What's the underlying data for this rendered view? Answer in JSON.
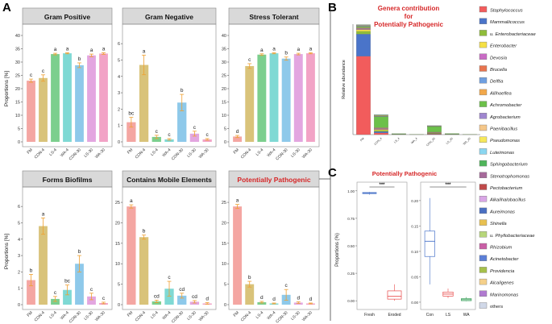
{
  "panel_letters": {
    "a": "A",
    "b": "B",
    "c": "C"
  },
  "colors": {
    "bars": [
      "#f4a6a2",
      "#d9c37a",
      "#7ccf8e",
      "#7fd9d4",
      "#8ec9ea",
      "#e3a6e0",
      "#f2a3c6"
    ],
    "errorbar": "#f0a030",
    "strip": "#d9d9d9",
    "title_red": "#d62728",
    "stack": [
      "#f25c5c",
      "#4a74c9",
      "#8fbc3a",
      "#f5e044",
      "#c86bc4",
      "#e8744f",
      "#6f9fe0",
      "#f2a84a",
      "#6cc04a",
      "#9f86cf",
      "#f5c78a",
      "#f6e85a",
      "#8ad6f0",
      "#4fb55a",
      "#a66a9a",
      "#c04a4a",
      "#d9a6e6",
      "#4a6fc2",
      "#e8c050",
      "#b7d67a",
      "#c95fa6",
      "#5c7fd6",
      "#a5c04a",
      "#f5d08a",
      "#b07ad0",
      "#d0d8e8"
    ],
    "box_fresh": "#4a74c9",
    "box_eroded": "#e84a4a",
    "box_con": "#4a74c9",
    "box_ls": "#e84a4a",
    "box_wa": "#3aa05a"
  },
  "chart_data": [
    {
      "type": "bar",
      "title": "Gram Positive",
      "categories": [
        "FM",
        "CON-4",
        "LS-4",
        "WA-4",
        "CON-30",
        "LS-30",
        "WA-30"
      ],
      "values": [
        23,
        24,
        33,
        33.3,
        28.8,
        32.5,
        33.2
      ],
      "errors": [
        0.6,
        1.2,
        0.3,
        0.2,
        0.9,
        0.5,
        0.3
      ],
      "letters": [
        "c",
        "c",
        "a",
        "a",
        "b",
        "a",
        "a"
      ],
      "ylim": [
        0,
        40
      ],
      "yticks": [
        "0",
        "5",
        "10",
        "15",
        "20",
        "25",
        "30",
        "35",
        "40"
      ],
      "ylabel": "Proportions [%]"
    },
    {
      "type": "bar",
      "title": "Gram Negative",
      "categories": [
        "FM",
        "CON-4",
        "LS-4",
        "WA-4",
        "CON-30",
        "LS-30",
        "WA-30"
      ],
      "values": [
        1.2,
        4.7,
        0.3,
        0.15,
        2.4,
        0.5,
        0.15
      ],
      "errors": [
        0.3,
        0.6,
        0.1,
        0.05,
        0.5,
        0.15,
        0.05
      ],
      "letters": [
        "bc",
        "a",
        "c",
        "c",
        "b",
        "c",
        "c"
      ],
      "ylim": [
        0,
        6.5
      ],
      "yticks": [
        "0",
        "1",
        "2",
        "3",
        "4",
        "5",
        "6"
      ],
      "ylabel": ""
    },
    {
      "type": "bar",
      "title": "Stress Tolerant",
      "categories": [
        "FM",
        "CON-4",
        "LS-4",
        "WA-4",
        "CON-30",
        "LS-30",
        "WA-30"
      ],
      "values": [
        2,
        28.5,
        32.8,
        33.3,
        31.3,
        33,
        33.3
      ],
      "errors": [
        0.4,
        0.9,
        0.3,
        0.2,
        0.6,
        0.3,
        0.2
      ],
      "letters": [
        "d",
        "c",
        "a",
        "a",
        "b",
        "a",
        "a"
      ],
      "ylim": [
        0,
        40
      ],
      "yticks": [
        "0",
        "5",
        "10",
        "15",
        "20",
        "25",
        "30",
        "35",
        "40"
      ],
      "ylabel": ""
    },
    {
      "type": "bar",
      "title": "Forms Biofilms",
      "categories": [
        "FM",
        "CON-4",
        "LS-4",
        "WA-4",
        "CON-30",
        "LS-30",
        "WA-30"
      ],
      "values": [
        1.5,
        4.8,
        0.35,
        0.9,
        2.5,
        0.5,
        0.1
      ],
      "errors": [
        0.35,
        0.5,
        0.15,
        0.3,
        0.5,
        0.2,
        0.05
      ],
      "letters": [
        "b",
        "a",
        "c",
        "bc",
        "b",
        "c",
        "c"
      ],
      "ylim": [
        0,
        6.5
      ],
      "yticks": [
        "0",
        "1",
        "2",
        "3",
        "4",
        "5",
        "6"
      ],
      "ylabel": "Proportions [%]"
    },
    {
      "type": "bar",
      "title": "Contains Mobile Elements",
      "categories": [
        "FM",
        "CON-4",
        "LS-4",
        "WA-4",
        "CON-30",
        "LS-30",
        "WA-30"
      ],
      "values": [
        24,
        16.5,
        0.8,
        3.9,
        2.2,
        0.7,
        0.3
      ],
      "errors": [
        0.4,
        0.5,
        0.3,
        1.8,
        0.6,
        0.3,
        0.2
      ],
      "letters": [
        "a",
        "b",
        "cd",
        "c",
        "cd",
        "cd",
        "d"
      ],
      "ylim": [
        0,
        26
      ],
      "yticks": [
        "0",
        "5",
        "10",
        "15",
        "20",
        "25"
      ],
      "ylabel": ""
    },
    {
      "type": "bar",
      "title": "Potentially Pathogenic",
      "categories": [
        "FM",
        "CON-4",
        "LS-4",
        "WA-4",
        "CON-30",
        "LS-30",
        "WA-30"
      ],
      "values": [
        24,
        5,
        0.6,
        0.3,
        2.4,
        0.5,
        0.3
      ],
      "errors": [
        0.5,
        0.7,
        0.2,
        0.1,
        1.3,
        0.2,
        0.1
      ],
      "letters": [
        "a",
        "b",
        "d",
        "d",
        "c",
        "d",
        "d"
      ],
      "ylim": [
        0,
        26
      ],
      "yticks": [
        "0",
        "5",
        "10",
        "15",
        "20",
        "25"
      ],
      "ylabel": ""
    },
    {
      "type": "bar",
      "stacked": true,
      "title": "Genera contribution for Potentially Pathogenic",
      "title_lines": [
        "Genera contribution",
        "for",
        "Potentially Pathogenic"
      ],
      "ylabel": "Relative abundance",
      "categories": [
        "FM",
        "CON_4",
        "LS_4",
        "WA_4",
        "CON_30",
        "LS_30",
        "WA_30"
      ],
      "ylim": [
        0,
        1
      ],
      "series": [
        {
          "name": "Staphylococcus",
          "values": [
            0.71,
            0.015,
            0.002,
            0.001,
            0.004,
            0.002,
            0.001
          ]
        },
        {
          "name": "Mammaliicoccus",
          "values": [
            0.2,
            0.012,
            0.001,
            0.0,
            0.003,
            0.001,
            0.0
          ]
        },
        {
          "name": "u. Enterobacteriaceae",
          "values": [
            0.025,
            0.01,
            0.001,
            0.0,
            0.004,
            0.001,
            0.0
          ]
        },
        {
          "name": "Enterobacter",
          "values": [
            0.015,
            0.008,
            0.0,
            0.0,
            0.003,
            0.0,
            0.0
          ]
        },
        {
          "name": "Devosia",
          "values": [
            0.005,
            0.004,
            0.0,
            0.0,
            0.002,
            0.0,
            0.0
          ]
        },
        {
          "name": "Brucella",
          "values": [
            0.005,
            0.006,
            0.0,
            0.0,
            0.003,
            0.0,
            0.0
          ]
        },
        {
          "name": "Delftia",
          "values": [
            0.005,
            0.005,
            0.0,
            0.0,
            0.002,
            0.0,
            0.0
          ]
        },
        {
          "name": "Allihoeflea",
          "values": [
            0.005,
            0.004,
            0.0,
            0.0,
            0.002,
            0.0,
            0.0
          ]
        },
        {
          "name": "Achromobacter",
          "values": [
            0.01,
            0.1,
            0.005,
            0.002,
            0.05,
            0.006,
            0.002
          ]
        },
        {
          "name": "Agrobacterium",
          "values": [
            0.005,
            0.004,
            0.0,
            0.0,
            0.002,
            0.0,
            0.0
          ]
        },
        {
          "name": "Paenibacillus",
          "values": [
            0.003,
            0.003,
            0.0,
            0.0,
            0.002,
            0.0,
            0.0
          ]
        },
        {
          "name": "Pseudomonas",
          "values": [
            0.003,
            0.004,
            0.0,
            0.0,
            0.002,
            0.0,
            0.0
          ]
        },
        {
          "name": "Luteimonas",
          "values": [
            0.002,
            0.003,
            0.0,
            0.0,
            0.001,
            0.0,
            0.0
          ]
        },
        {
          "name": "Sphingobacterium",
          "values": [
            0.002,
            0.002,
            0.0,
            0.0,
            0.001,
            0.0,
            0.0
          ]
        }
      ]
    },
    {
      "type": "box",
      "title": "Potentially Pathogenic",
      "ylabel": "Proportions (%)",
      "left": {
        "categories": [
          "Fresh",
          "Eroded"
        ],
        "yticks": [
          "0.00",
          "0.25",
          "0.50",
          "0.75",
          "1.00"
        ],
        "ylim": [
          -0.05,
          1.05
        ],
        "boxes": [
          {
            "name": "Fresh",
            "min": 0.965,
            "q1": 0.975,
            "median": 0.98,
            "q3": 0.985,
            "max": 0.99
          },
          {
            "name": "Eroded",
            "min": 0.0,
            "q1": 0.015,
            "median": 0.04,
            "q3": 0.09,
            "max": 0.15
          }
        ],
        "significance": "***"
      },
      "right": {
        "categories": [
          "Con",
          "LS",
          "WA"
        ],
        "yticks": [
          "0.00",
          "0.05",
          "0.10",
          "0.15",
          "0.20"
        ],
        "ylim": [
          -0.008,
          0.23
        ],
        "boxes": [
          {
            "name": "Con",
            "min": 0.035,
            "q1": 0.09,
            "median": 0.12,
            "q3": 0.14,
            "max": 0.205
          },
          {
            "name": "LS",
            "min": 0.008,
            "q1": 0.012,
            "median": 0.016,
            "q3": 0.02,
            "max": 0.027
          },
          {
            "name": "WA",
            "min": 0.002,
            "q1": 0.003,
            "median": 0.005,
            "q3": 0.007,
            "max": 0.01
          }
        ],
        "significance": "***"
      }
    }
  ],
  "legend": [
    "Staphylococcus",
    "Mammaliicoccus",
    "u. Enterobacteriaceae",
    "Enterobacter",
    "Devosia",
    "Brucella",
    "Delftia",
    "Allihoeflea",
    "Achromobacter",
    "Agrobacterium",
    "Paenibacillus",
    "Pseudomonas",
    "Luteimonas",
    "Sphingobacterium",
    "Stenotrophomonas",
    "Pectobacterium",
    "Alkalihalobacillus",
    "Aureimonas",
    "Shinella",
    "u. Phyllobacteriaceae",
    "Rhizobium",
    "Acinetobacter",
    "Providencia",
    "Alcaligenes",
    "Marinomonas",
    "others"
  ]
}
